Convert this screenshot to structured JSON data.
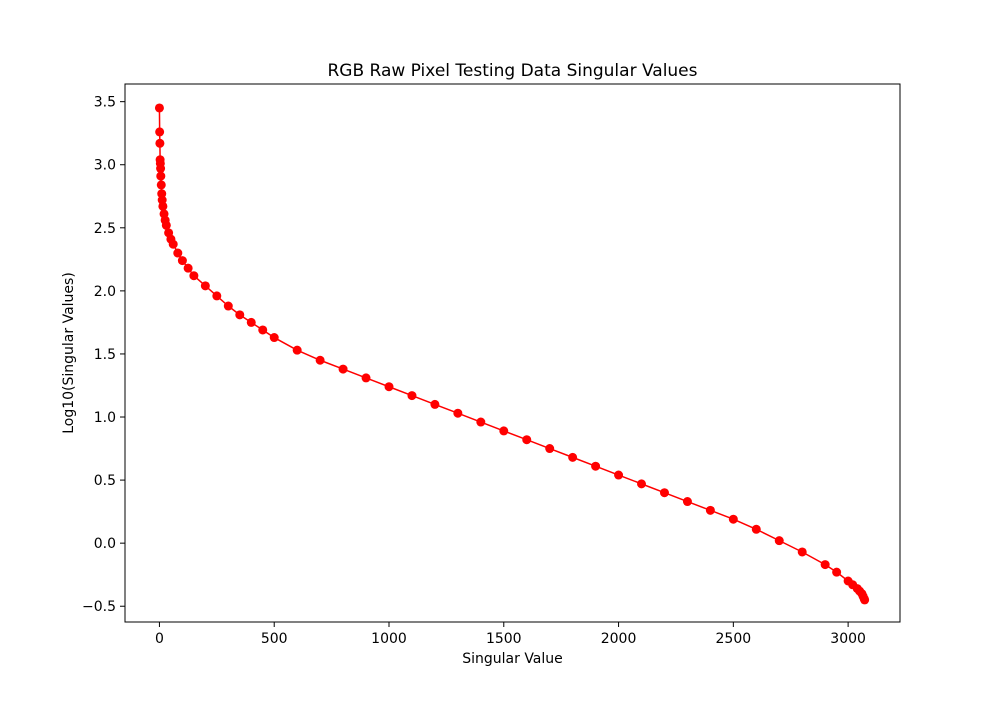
{
  "chart_data": {
    "type": "line",
    "title": "RGB Raw Pixel Testing Data Singular Values",
    "xlabel": "Singular Value",
    "ylabel": "Log10(Singular Values)",
    "xlim": [
      -150,
      3226
    ],
    "ylim": [
      -0.625,
      3.64
    ],
    "xticks": [
      0,
      500,
      1000,
      1500,
      2000,
      2500,
      3000
    ],
    "xtick_labels": [
      "0",
      "500",
      "1000",
      "1500",
      "2000",
      "2500",
      "3000"
    ],
    "yticks": [
      -0.5,
      0.0,
      0.5,
      1.0,
      1.5,
      2.0,
      2.5,
      3.0,
      3.5
    ],
    "ytick_labels": [
      "−0.5",
      "0.0",
      "0.5",
      "1.0",
      "1.5",
      "2.0",
      "2.5",
      "3.0",
      "3.5"
    ],
    "grid": false,
    "legend": "none",
    "marker": "circle",
    "color": "#ff0000",
    "series": [
      {
        "x": [
          0,
          1,
          2,
          3,
          4,
          5,
          6,
          8,
          10,
          12,
          15,
          20,
          25,
          30,
          40,
          50,
          60,
          80,
          100,
          125,
          150,
          200,
          250,
          300,
          350,
          400,
          450,
          500,
          600,
          700,
          800,
          900,
          1000,
          1100,
          1200,
          1300,
          1400,
          1500,
          1600,
          1700,
          1800,
          1900,
          2000,
          2100,
          2200,
          2300,
          2400,
          2500,
          2600,
          2700,
          2800,
          2900,
          2950,
          3000,
          3020,
          3040,
          3050,
          3060,
          3065,
          3070,
          3072
        ],
        "y": [
          3.45,
          3.26,
          3.17,
          3.04,
          3.01,
          2.97,
          2.91,
          2.84,
          2.77,
          2.72,
          2.67,
          2.61,
          2.56,
          2.52,
          2.46,
          2.41,
          2.37,
          2.3,
          2.24,
          2.18,
          2.12,
          2.04,
          1.96,
          1.88,
          1.81,
          1.75,
          1.69,
          1.63,
          1.53,
          1.45,
          1.38,
          1.31,
          1.24,
          1.17,
          1.1,
          1.03,
          0.96,
          0.89,
          0.82,
          0.75,
          0.68,
          0.61,
          0.54,
          0.47,
          0.4,
          0.33,
          0.26,
          0.19,
          0.11,
          0.02,
          -0.07,
          -0.17,
          -0.23,
          -0.3,
          -0.33,
          -0.36,
          -0.38,
          -0.4,
          -0.42,
          -0.44,
          -0.45
        ]
      }
    ]
  }
}
